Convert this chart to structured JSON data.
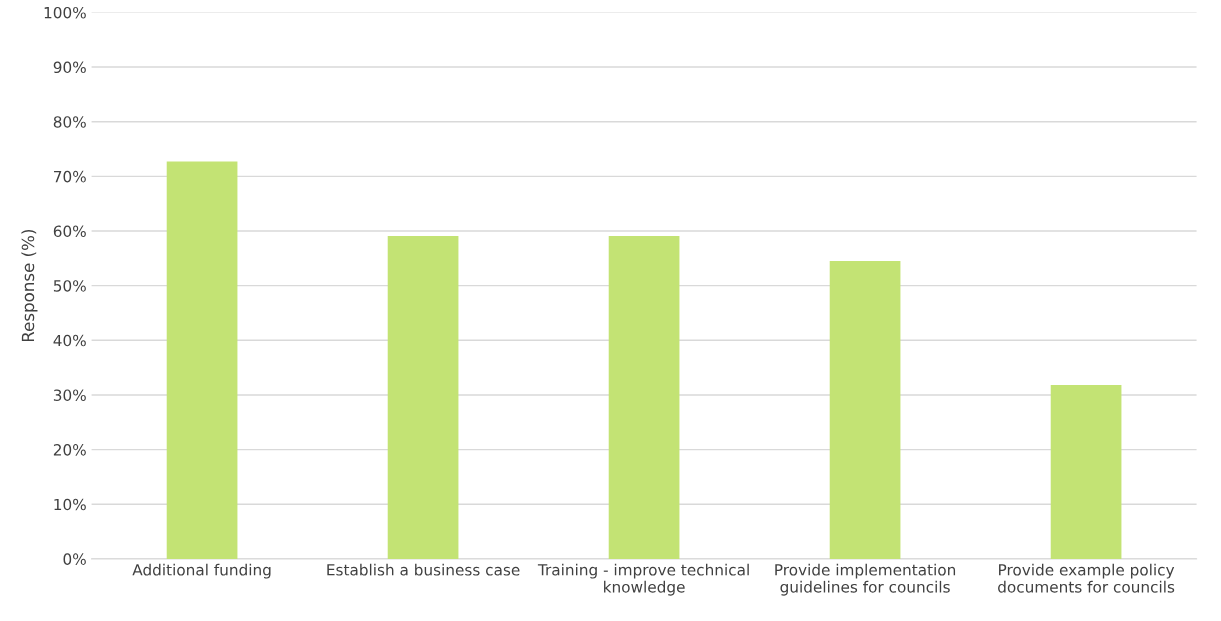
{
  "chart_data": {
    "type": "bar",
    "ylabel": "Response (%)",
    "categories": [
      "Additional funding",
      "Establish a business case",
      "Training - improve technical\nknowledge",
      "Provide implementation\nguidelines for councils",
      "Provide example policy\ndocuments for councils"
    ],
    "values": [
      72.7,
      59.1,
      59.1,
      54.5,
      31.8
    ],
    "color": "#c3e374",
    "ylim": [
      0,
      100
    ],
    "yticks": [
      {
        "value": 0,
        "label": "0%"
      },
      {
        "value": 10,
        "label": "10%"
      },
      {
        "value": 20,
        "label": "20%"
      },
      {
        "value": 30,
        "label": "30%"
      },
      {
        "value": 40,
        "label": "40%"
      },
      {
        "value": 50,
        "label": "50%"
      },
      {
        "value": 60,
        "label": "60%"
      },
      {
        "value": 70,
        "label": "70%"
      },
      {
        "value": 80,
        "label": "80%"
      },
      {
        "value": 90,
        "label": "90%"
      },
      {
        "value": 100,
        "label": "100%"
      }
    ],
    "grid": "y"
  }
}
